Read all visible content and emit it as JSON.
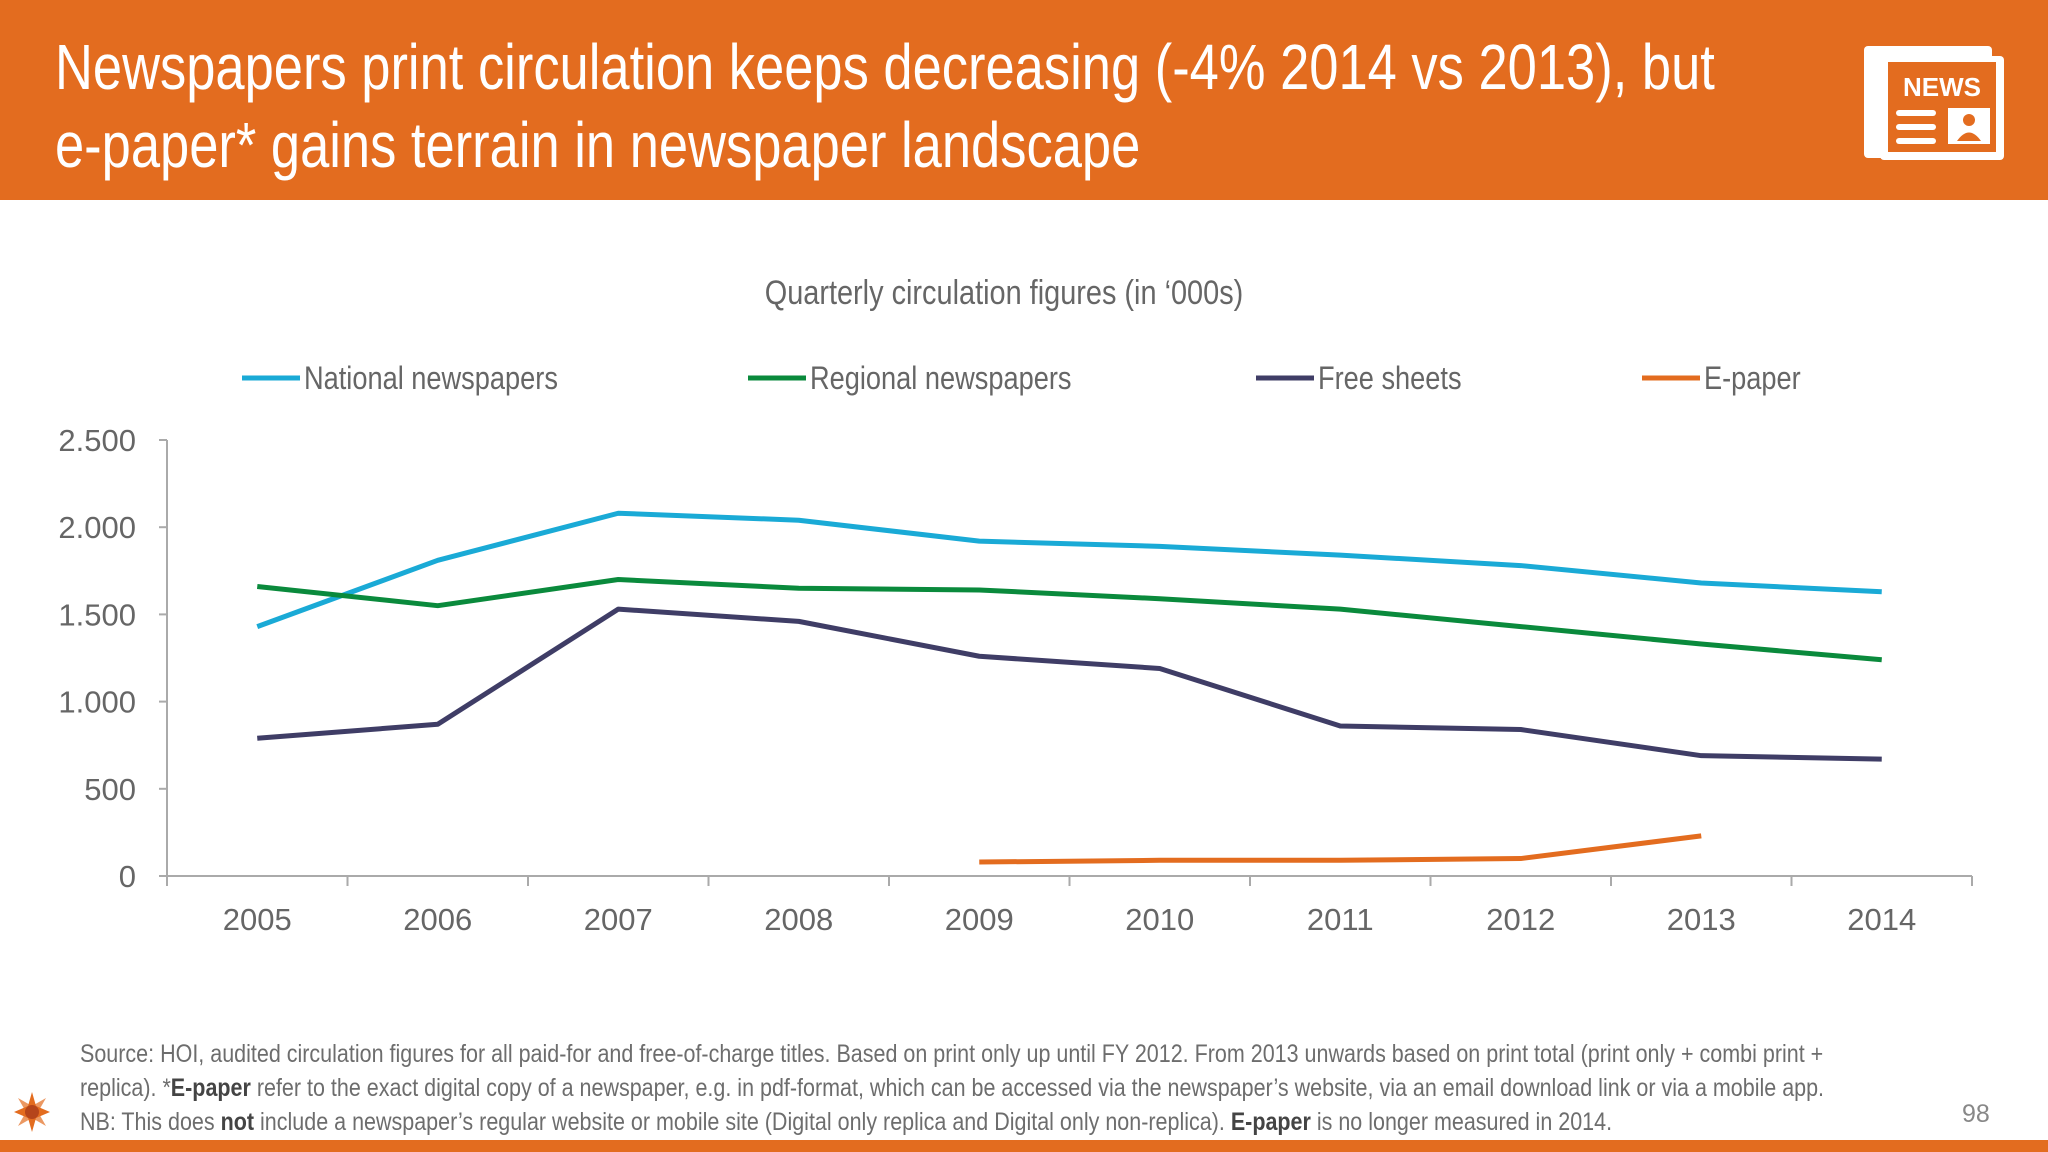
{
  "header": {
    "title_line1": "Newspapers print circulation keeps decreasing (-4% 2014 vs 2013), but",
    "title_line2": "e-paper* gains terrain in newspaper landscape",
    "icon": "newspaper-icon",
    "icon_text": "NEWS",
    "background_color": "#e36c1f"
  },
  "chart_data": {
    "type": "line",
    "title": "Quarterly circulation figures (in ‘000s)",
    "categories": [
      "2005",
      "2006",
      "2007",
      "2008",
      "2009",
      "2010",
      "2011",
      "2012",
      "2013",
      "2014"
    ],
    "ylim": [
      0,
      2500
    ],
    "yticks": [
      0,
      500,
      1000,
      1500,
      2000,
      2500
    ],
    "ytick_labels": [
      "0",
      "500",
      "1.000",
      "1.500",
      "2.000",
      "2.500"
    ],
    "grid": false,
    "legend_position": "top",
    "series": [
      {
        "name": "National newspapers",
        "color": "#1aaad6",
        "values": [
          1430,
          1810,
          2080,
          2040,
          1920,
          1890,
          1840,
          1780,
          1680,
          1630
        ]
      },
      {
        "name": "Regional newspapers",
        "color": "#0a8a3c",
        "values": [
          1660,
          1550,
          1700,
          1650,
          1640,
          1590,
          1530,
          1430,
          1330,
          1240
        ]
      },
      {
        "name": "Free sheets",
        "color": "#3f3d66",
        "values": [
          790,
          870,
          1530,
          1460,
          1260,
          1190,
          860,
          840,
          690,
          670
        ]
      },
      {
        "name": "E-paper",
        "color": "#e36c1f",
        "values": [
          null,
          null,
          null,
          null,
          80,
          90,
          90,
          100,
          230,
          null
        ]
      }
    ]
  },
  "footer": {
    "line1": "Source: HOI, audited circulation figures for all paid-for and free-of-charge titles. Based on print only up until FY 2012. From 2013 unwards based on print total (print only + combi print +",
    "line2_a": "replica). *",
    "line2_b": "E-paper",
    "line2_c": " refer to the exact digital copy of a newspaper, e.g. in pdf-format, which can be accessed via the newspaper’s website, via an email download link or via a mobile app.",
    "line3_a": "NB: This does ",
    "line3_b": "not",
    "line3_c": " include a newspaper’s regular website or mobile site (Digital only replica and Digital only non-replica). ",
    "line3_d": "E-paper",
    "line3_e": " is no longer measured in 2014.",
    "page_number": "98"
  }
}
